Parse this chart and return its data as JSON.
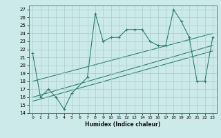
{
  "xlabel": "Humidex (Indice chaleur)",
  "bg_color": "#cceaea",
  "line_color": "#2d7d6e",
  "grid_color": "#aacccc",
  "xlim": [
    -0.5,
    23.5
  ],
  "ylim": [
    14,
    27.5
  ],
  "xticks": [
    0,
    1,
    2,
    3,
    4,
    5,
    6,
    7,
    8,
    9,
    10,
    11,
    12,
    13,
    14,
    15,
    16,
    17,
    18,
    19,
    20,
    21,
    22,
    23
  ],
  "yticks": [
    14,
    15,
    16,
    17,
    18,
    19,
    20,
    21,
    22,
    23,
    24,
    25,
    26,
    27
  ],
  "main_series_x": [
    0,
    1,
    2,
    3,
    4,
    5,
    7,
    8,
    9,
    10,
    11,
    12,
    13,
    14,
    15,
    16,
    17,
    18,
    19,
    20,
    21,
    22,
    23
  ],
  "main_series_y": [
    21.5,
    16.0,
    17.0,
    16.0,
    14.5,
    16.5,
    18.5,
    26.5,
    23.0,
    23.5,
    23.5,
    24.5,
    24.5,
    24.5,
    23.0,
    22.5,
    22.5,
    27.0,
    25.5,
    23.5,
    18.0,
    18.0,
    23.5
  ],
  "trend1_x": [
    0,
    23
  ],
  "trend1_y": [
    16.0,
    22.5
  ],
  "trend2_x": [
    0,
    23
  ],
  "trend2_y": [
    15.5,
    21.8
  ],
  "trend3_x": [
    0,
    23
  ],
  "trend3_y": [
    18.0,
    24.0
  ]
}
